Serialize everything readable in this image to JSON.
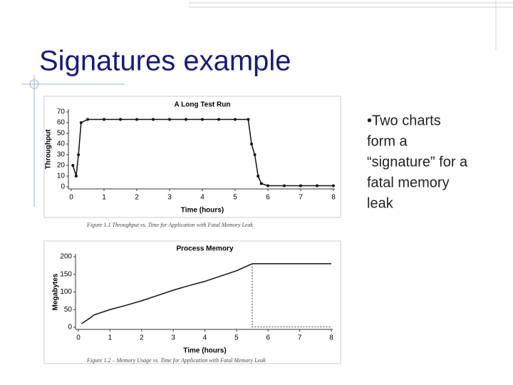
{
  "title": "Signatures example",
  "bullet_lines": [
    "•Two charts",
    "form a",
    "“signature” for  a",
    "fatal memory",
    "leak"
  ],
  "chart_data": [
    {
      "type": "line",
      "title": "A Long Test Run",
      "x_label": "Time (hours)",
      "y_label": "Throughput",
      "caption": "Figure 1.1   Throughput vs. Time for Application with Fatal Memory Leak",
      "xlim": [
        0,
        8
      ],
      "xticks": [
        0,
        1,
        2,
        3,
        4,
        5,
        6,
        7,
        8
      ],
      "ylim": [
        0,
        70
      ],
      "yticks": [
        0,
        10,
        20,
        30,
        40,
        50,
        60,
        70
      ],
      "markers": true,
      "series": [
        {
          "color": "#111111",
          "x": [
            0.05,
            0.15,
            0.22,
            0.3,
            0.5,
            1,
            1.5,
            2,
            2.5,
            3,
            3.5,
            4,
            4.5,
            5,
            5.4,
            5.5,
            5.6,
            5.7,
            5.8,
            6,
            6.5,
            7,
            7.5,
            8
          ],
          "values": [
            20,
            10,
            30,
            60,
            63,
            63,
            63,
            63,
            63,
            63,
            63,
            63,
            63,
            63,
            63,
            40,
            30,
            10,
            3,
            1,
            1,
            1,
            1,
            1
          ]
        }
      ]
    },
    {
      "type": "line",
      "title": "Process Memory",
      "x_label": "Time (hours)",
      "y_label": "Megabytes",
      "caption": "Figure 1.2 – Memory Usage vs. Time for Application with Fatal Memory Leak",
      "xlim": [
        0,
        8
      ],
      "xticks": [
        0,
        1,
        2,
        3,
        4,
        5,
        6,
        7,
        8
      ],
      "ylim": [
        0,
        200
      ],
      "yticks": [
        0,
        50,
        100,
        150,
        200
      ],
      "markers": false,
      "series": [
        {
          "color": "#111111",
          "dashed": false,
          "x": [
            0.1,
            0.3,
            0.5,
            1,
            1.5,
            2,
            2.5,
            3,
            3.5,
            4,
            4.5,
            5,
            5.5,
            8
          ],
          "values": [
            10,
            22,
            35,
            50,
            62,
            75,
            90,
            105,
            118,
            130,
            145,
            160,
            180,
            180
          ]
        },
        {
          "color": "#777777",
          "dashed": true,
          "x": [
            5.5,
            5.5,
            8
          ],
          "values": [
            180,
            1,
            1
          ]
        }
      ]
    }
  ]
}
